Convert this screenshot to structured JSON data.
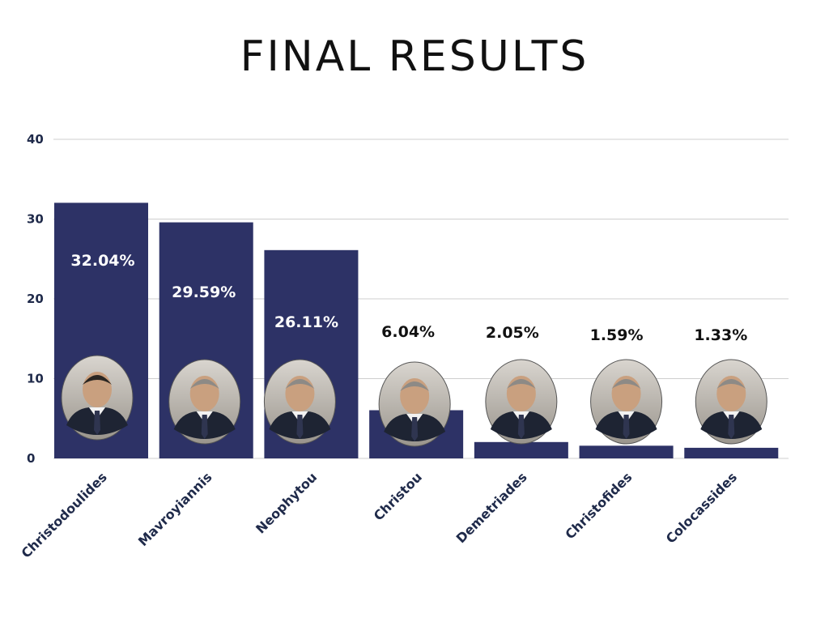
{
  "chart_data": {
    "type": "bar",
    "title": "FINAL RESULTS",
    "categories": [
      "Christodoulides",
      "Mavroyiannis",
      "Neophytou",
      "Christou",
      "Demetriades",
      "Christofides",
      "Colocassides"
    ],
    "values": [
      32.04,
      29.59,
      26.11,
      6.04,
      2.05,
      1.59,
      1.33
    ],
    "data_labels": [
      "32.04%",
      "29.59%",
      "26.11%",
      "6.04%",
      "2.05%",
      "1.59%",
      "1.33%"
    ],
    "yticks": [
      "0",
      "10",
      "20",
      "30",
      "40"
    ],
    "ylim": [
      0,
      40
    ],
    "xlabel": "",
    "ylabel": "",
    "grid": true,
    "legend": "none",
    "bar_color": "#2d3266",
    "inside_label_color": "#ffffff",
    "outside_label_color": "#111111",
    "gridline_color": "#cfcfcf",
    "icons": [
      "candidate-portrait-icon"
    ]
  }
}
